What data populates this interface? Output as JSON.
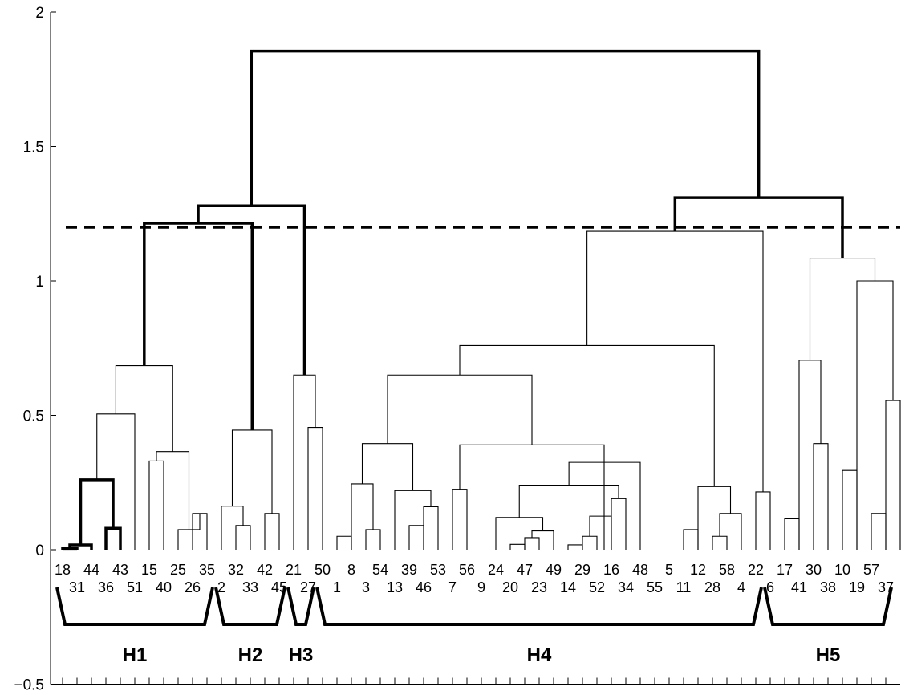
{
  "chart_data": {
    "type": "dendrogram",
    "ylim": [
      -0.5,
      2
    ],
    "yticks": [
      {
        "value": -0.5,
        "label": "−0.5"
      },
      {
        "value": 0,
        "label": "0"
      },
      {
        "value": 0.5,
        "label": "0.5"
      },
      {
        "value": 1,
        "label": "1"
      },
      {
        "value": 1.5,
        "label": "1.5"
      },
      {
        "value": 2,
        "label": "2"
      }
    ],
    "threshold": 1.2,
    "leaf_order": [
      "18",
      "31",
      "44",
      "36",
      "43",
      "51",
      "15",
      "40",
      "25",
      "26",
      "35",
      "2",
      "32",
      "33",
      "42",
      "45",
      "21",
      "27",
      "50",
      "1",
      "8",
      "3",
      "54",
      "13",
      "39",
      "46",
      "53",
      "7",
      "56",
      "9",
      "24",
      "20",
      "47",
      "23",
      "49",
      "14",
      "29",
      "52",
      "16",
      "34",
      "48",
      "55",
      "5",
      "11",
      "12",
      "28",
      "58",
      "4",
      "22",
      "6",
      "17",
      "41",
      "30",
      "38",
      "10",
      "19",
      "57",
      "37"
    ],
    "links": [
      {
        "l": [
          0,
          1
        ],
        "h": 0.005,
        "bold": true
      },
      {
        "l": [
          0.5,
          2
        ],
        "h": 0.018,
        "bold": true
      },
      {
        "l": [
          3,
          4
        ],
        "h": 0.08,
        "bold": true
      },
      {
        "l": [
          1.25,
          3.5
        ],
        "h": 0.26,
        "bold": true
      },
      {
        "l": [
          9,
          10
        ],
        "h": 0.135
      },
      {
        "l": [
          8,
          9.5
        ],
        "h": 0.075
      },
      {
        "l": [
          6,
          7
        ],
        "h": 0.33
      },
      {
        "l": [
          6.5,
          8.75
        ],
        "h": 0.365
      },
      {
        "l": [
          2.375,
          5
        ],
        "h": 0.505
      },
      {
        "l": [
          3.6875,
          7.625
        ],
        "h": 0.685
      },
      {
        "l": [
          12,
          13
        ],
        "h": 0.09
      },
      {
        "l": [
          11,
          12.5
        ],
        "h": 0.162
      },
      {
        "l": [
          14,
          15
        ],
        "h": 0.135
      },
      {
        "l": [
          11.75,
          14.5
        ],
        "h": 0.445
      },
      {
        "l": [
          5.65625,
          13.125
        ],
        "h": 1.215,
        "bold": true
      },
      {
        "l": [
          17,
          18
        ],
        "h": 0.455
      },
      {
        "l": [
          16,
          17.5
        ],
        "h": 0.65
      },
      {
        "l": [
          9.390625,
          16.75
        ],
        "h": 1.28,
        "bold": true
      },
      {
        "l": [
          19,
          20
        ],
        "h": 0.05
      },
      {
        "l": [
          21,
          22
        ],
        "h": 0.075
      },
      {
        "l": [
          20,
          21.5
        ],
        "h": 0.245
      },
      {
        "l": [
          24,
          25
        ],
        "h": 0.09
      },
      {
        "l": [
          25,
          26
        ],
        "h": 0.16
      },
      {
        "l": [
          23,
          25.5
        ],
        "h": 0.22
      },
      {
        "l": [
          20.75,
          24.25
        ],
        "h": 0.395
      },
      {
        "l": [
          27,
          28
        ],
        "h": 0.225
      },
      {
        "l": [
          31,
          32
        ],
        "h": 0.02
      },
      {
        "l": [
          32,
          33
        ],
        "h": 0.045
      },
      {
        "l": [
          32.5,
          34
        ],
        "h": 0.07
      },
      {
        "l": [
          30,
          33.25
        ],
        "h": 0.12
      },
      {
        "l": [
          35,
          36
        ],
        "h": 0.018
      },
      {
        "l": [
          36,
          37
        ],
        "h": 0.05
      },
      {
        "l": [
          36.5,
          38
        ],
        "h": 0.125
      },
      {
        "l": [
          38,
          39
        ],
        "h": 0.19
      },
      {
        "l": [
          31.625,
          38.5
        ],
        "h": 0.24
      },
      {
        "l": [
          35.0625,
          40
        ],
        "h": 0.325
      },
      {
        "l": [
          27.5,
          37.5
        ],
        "h": 0.39
      },
      {
        "l": [
          22.5,
          32.5
        ],
        "h": 0.65
      },
      {
        "l": [
          43,
          44
        ],
        "h": 0.075
      },
      {
        "l": [
          45,
          46
        ],
        "h": 0.05
      },
      {
        "l": [
          45.5,
          47
        ],
        "h": 0.135
      },
      {
        "l": [
          44,
          46.25
        ],
        "h": 0.235
      },
      {
        "l": [
          27.5,
          45.125
        ],
        "h": 0.76
      },
      {
        "l": [
          48,
          49
        ],
        "h": 0.215
      },
      {
        "l": [
          36.3125,
          48.5
        ],
        "h": 1.185
      },
      {
        "l": [
          50,
          51
        ],
        "h": 0.115
      },
      {
        "l": [
          52,
          53
        ],
        "h": 0.395
      },
      {
        "l": [
          51,
          52.5
        ],
        "h": 0.705
      },
      {
        "l": [
          54,
          55
        ],
        "h": 0.295
      },
      {
        "l": [
          56,
          57
        ],
        "h": 0.135
      },
      {
        "l": [
          57,
          58
        ],
        "h": 0.555
      },
      {
        "l": [
          55,
          57.5
        ],
        "h": 1.0
      },
      {
        "l": [
          51.75,
          56.25
        ],
        "h": 1.085
      },
      {
        "l": [
          42.40625,
          54
        ],
        "h": 1.31,
        "bold": true
      },
      {
        "l": [
          13.0703125,
          48.203125
        ],
        "h": 1.855,
        "bold": true
      }
    ],
    "groups": [
      {
        "label": "H1",
        "from": 1,
        "to": 11
      },
      {
        "label": "H2",
        "from": 12,
        "to": 16
      },
      {
        "label": "H3",
        "from": 17,
        "to": 18
      },
      {
        "label": "H4",
        "from": 19,
        "to": 49
      },
      {
        "label": "H5",
        "from": 50,
        "to": 58
      }
    ]
  }
}
